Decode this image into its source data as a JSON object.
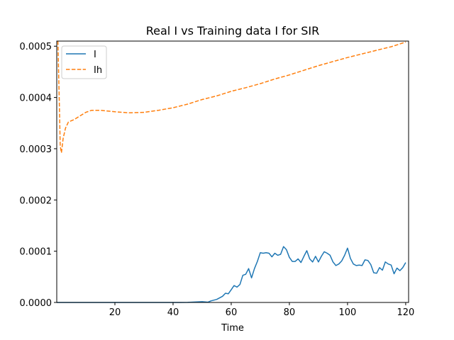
{
  "chart_data": {
    "type": "line",
    "title": "Real I vs Training data I for SIR",
    "xlabel": "Time",
    "ylabel": "",
    "xlim": [
      0,
      121
    ],
    "ylim": [
      0,
      0.00051
    ],
    "x_ticks": [
      20,
      40,
      60,
      80,
      100,
      120
    ],
    "x_tick_labels": [
      "20",
      "40",
      "60",
      "80",
      "100",
      "120"
    ],
    "y_ticks": [
      0,
      0.0001,
      0.0002,
      0.0003,
      0.0004,
      0.0005
    ],
    "y_tick_labels": [
      "0.0000",
      "0.0001",
      "0.0002",
      "0.0003",
      "0.0004",
      "0.0005"
    ],
    "legend_position": "top-left",
    "series": [
      {
        "name": "I",
        "color": "#1f77b4",
        "style": "solid",
        "points": [
          [
            0,
            0
          ],
          [
            10,
            0
          ],
          [
            20,
            0
          ],
          [
            30,
            0
          ],
          [
            40,
            0
          ],
          [
            45,
            2e-07
          ],
          [
            50,
            1.5e-06
          ],
          [
            52,
            5e-07
          ],
          [
            53,
            3e-06
          ],
          [
            55,
            6e-06
          ],
          [
            57,
            1.2e-05
          ],
          [
            58,
            1.8e-05
          ],
          [
            59,
            1.7e-05
          ],
          [
            60,
            2.5e-05
          ],
          [
            61,
            3.3e-05
          ],
          [
            62,
            3e-05
          ],
          [
            63,
            3.5e-05
          ],
          [
            64,
            5.3e-05
          ],
          [
            65,
            5.5e-05
          ],
          [
            66,
            6.6e-05
          ],
          [
            67,
            4.8e-05
          ],
          [
            68,
            6.6e-05
          ],
          [
            69,
            8e-05
          ],
          [
            70,
            9.7e-05
          ],
          [
            71,
            9.6e-05
          ],
          [
            72,
            9.7e-05
          ],
          [
            73,
            9.6e-05
          ],
          [
            74,
            8.9e-05
          ],
          [
            75,
            9.6e-05
          ],
          [
            76,
            9.2e-05
          ],
          [
            77,
            9.4e-05
          ],
          [
            78,
            0.000109
          ],
          [
            79,
            0.000103
          ],
          [
            80,
            8.8e-05
          ],
          [
            81,
            8e-05
          ],
          [
            82,
            8e-05
          ],
          [
            83,
            8.5e-05
          ],
          [
            84,
            7.8e-05
          ],
          [
            85,
            9e-05
          ],
          [
            86,
            0.000101
          ],
          [
            87,
            8.5e-05
          ],
          [
            88,
            7.9e-05
          ],
          [
            89,
            9e-05
          ],
          [
            90,
            7.9e-05
          ],
          [
            91,
            9e-05
          ],
          [
            92,
            9.9e-05
          ],
          [
            93,
            9.6e-05
          ],
          [
            94,
            9.2e-05
          ],
          [
            95,
            7.9e-05
          ],
          [
            96,
            7.2e-05
          ],
          [
            97,
            7.5e-05
          ],
          [
            98,
            8.1e-05
          ],
          [
            99,
            9.2e-05
          ],
          [
            100,
            0.000106
          ],
          [
            101,
            8.6e-05
          ],
          [
            102,
            7.5e-05
          ],
          [
            103,
            7.2e-05
          ],
          [
            104,
            7.3e-05
          ],
          [
            105,
            7.2e-05
          ],
          [
            106,
            8.3e-05
          ],
          [
            107,
            8.2e-05
          ],
          [
            108,
            7.4e-05
          ],
          [
            109,
            5.8e-05
          ],
          [
            110,
            5.7e-05
          ],
          [
            111,
            6.8e-05
          ],
          [
            112,
            6.3e-05
          ],
          [
            113,
            7.9e-05
          ],
          [
            114,
            7.5e-05
          ],
          [
            115,
            7.3e-05
          ],
          [
            116,
            5.6e-05
          ],
          [
            117,
            6.7e-05
          ],
          [
            118,
            6.2e-05
          ],
          [
            119,
            6.8e-05
          ],
          [
            120,
            7.8e-05
          ]
        ]
      },
      {
        "name": "Ih",
        "color": "#ff7f0e",
        "style": "dashed",
        "points": [
          [
            0.4,
            0.00051
          ],
          [
            0.9,
            0.000385
          ],
          [
            1.2,
            0.000305
          ],
          [
            1.6,
            0.000292
          ],
          [
            2.2,
            0.00032
          ],
          [
            3,
            0.00034
          ],
          [
            4,
            0.000352
          ],
          [
            6,
            0.000357
          ],
          [
            8,
            0.000364
          ],
          [
            10,
            0.000371
          ],
          [
            12,
            0.000375
          ],
          [
            15,
            0.000375
          ],
          [
            20,
            0.000372
          ],
          [
            25,
            0.00037
          ],
          [
            30,
            0.000371
          ],
          [
            35,
            0.000375
          ],
          [
            40,
            0.00038
          ],
          [
            45,
            0.000387
          ],
          [
            50,
            0.000396
          ],
          [
            55,
            0.000403
          ],
          [
            60,
            0.000412
          ],
          [
            65,
            0.000419
          ],
          [
            70,
            0.000427
          ],
          [
            75,
            0.000436
          ],
          [
            80,
            0.000444
          ],
          [
            85,
            0.000453
          ],
          [
            90,
            0.000462
          ],
          [
            95,
            0.00047
          ],
          [
            100,
            0.000478
          ],
          [
            105,
            0.000485
          ],
          [
            110,
            0.000492
          ],
          [
            115,
            0.000499
          ],
          [
            120,
            0.000508
          ]
        ]
      }
    ]
  }
}
